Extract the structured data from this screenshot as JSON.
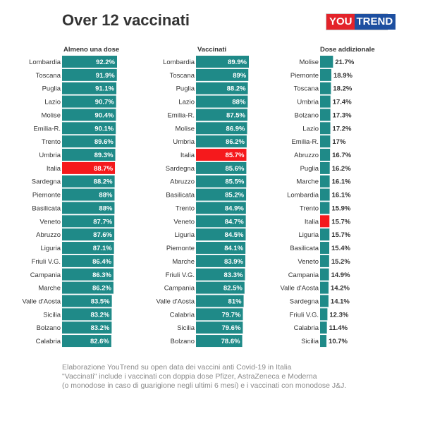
{
  "title": "Over 12 vaccinati",
  "logo": {
    "part1": "YOU",
    "part2": "TREND"
  },
  "colors": {
    "bar": "#1f8a88",
    "highlight": "#f5191c",
    "text": "#333333",
    "footer": "#8a8a8a"
  },
  "chart_data": [
    {
      "type": "bar",
      "orientation": "horizontal",
      "title": "Almeno una dose",
      "highlight": "Italia",
      "categories": [
        "Lombardia",
        "Toscana",
        "Puglia",
        "Lazio",
        "Molise",
        "Emilia-R.",
        "Trento",
        "Umbria",
        "Italia",
        "Sardegna",
        "Piemonte",
        "Basilicata",
        "Veneto",
        "Abruzzo",
        "Liguria",
        "Friuli V.G.",
        "Campania",
        "Marche",
        "Valle d'Aosta",
        "Sicilia",
        "Bolzano",
        "Calabria"
      ],
      "values": [
        92.2,
        91.9,
        91.1,
        90.7,
        90.4,
        90.1,
        89.6,
        89.3,
        88.7,
        88.2,
        88,
        88,
        87.7,
        87.6,
        87.1,
        86.4,
        86.3,
        86.2,
        83.5,
        83.2,
        83.2,
        82.6
      ],
      "labels": [
        "92.2%",
        "91.9%",
        "91.1%",
        "90.7%",
        "90.4%",
        "90.1%",
        "89.6%",
        "89.3%",
        "88.7%",
        "88.2%",
        "88%",
        "88%",
        "87.7%",
        "87.6%",
        "87.1%",
        "86.4%",
        "86.3%",
        "86.2%",
        "83.5%",
        "83.2%",
        "83.2%",
        "82.6%"
      ],
      "xlim": [
        0,
        92.2
      ]
    },
    {
      "type": "bar",
      "orientation": "horizontal",
      "title": "Vaccinati",
      "highlight": "Italia",
      "categories": [
        "Lombardia",
        "Toscana",
        "Puglia",
        "Lazio",
        "Emilia-R.",
        "Molise",
        "Umbria",
        "Italia",
        "Sardegna",
        "Abruzzo",
        "Basilicata",
        "Trento",
        "Veneto",
        "Liguria",
        "Piemonte",
        "Marche",
        "Friuli V.G.",
        "Campania",
        "Valle d'Aosta",
        "Calabria",
        "Sicilia",
        "Bolzano"
      ],
      "values": [
        89.9,
        89,
        88.2,
        88,
        87.5,
        86.9,
        86.2,
        85.7,
        85.6,
        85.5,
        85.2,
        84.9,
        84.7,
        84.5,
        84.1,
        83.9,
        83.3,
        82.5,
        81,
        79.7,
        79.6,
        78.6
      ],
      "labels": [
        "89.9%",
        "89%",
        "88.2%",
        "88%",
        "87.5%",
        "86.9%",
        "86.2%",
        "85.7%",
        "85.6%",
        "85.5%",
        "85.2%",
        "84.9%",
        "84.7%",
        "84.5%",
        "84.1%",
        "83.9%",
        "83.3%",
        "82.5%",
        "81%",
        "79.7%",
        "79.6%",
        "78.6%"
      ],
      "xlim": [
        0,
        89.9
      ]
    },
    {
      "type": "bar",
      "orientation": "horizontal",
      "title": "Dose addizionale",
      "highlight": "Italia",
      "categories": [
        "Molise",
        "Piemonte",
        "Toscana",
        "Umbria",
        "Bolzano",
        "Lazio",
        "Emilia-R.",
        "Abruzzo",
        "Puglia",
        "Marche",
        "Lombardia",
        "Trento",
        "Italia",
        "Liguria",
        "Basilicata",
        "Veneto",
        "Campania",
        "Valle d'Aosta",
        "Sardegna",
        "Friuli V.G.",
        "Calabria",
        "Sicilia"
      ],
      "values": [
        21.7,
        18.9,
        18.2,
        17.4,
        17.3,
        17.2,
        17,
        16.7,
        16.2,
        16.1,
        16.1,
        15.9,
        15.7,
        15.7,
        15.4,
        15.2,
        14.9,
        14.2,
        14.1,
        12.3,
        11.4,
        10.7
      ],
      "labels": [
        "21.7%",
        "18.9%",
        "18.2%",
        "17.4%",
        "17.3%",
        "17.2%",
        "17%",
        "16.7%",
        "16.2%",
        "16.1%",
        "16.1%",
        "15.9%",
        "15.7%",
        "15.7%",
        "15.4%",
        "15.2%",
        "14.9%",
        "14.2%",
        "14.1%",
        "12.3%",
        "11.4%",
        "10.7%"
      ],
      "xlim": [
        0,
        92.2
      ]
    }
  ],
  "footer": [
    "Elaborazione YouTrend su open data dei vaccini anti Covid-19 in Italia",
    "\"Vaccinati\" include i vaccinati con doppia dose Pfizer, AstraZeneca e Moderna",
    "(o monodose in caso di guarigione negli ultimi 6 mesi) e i vaccinati con monodose J&J."
  ]
}
